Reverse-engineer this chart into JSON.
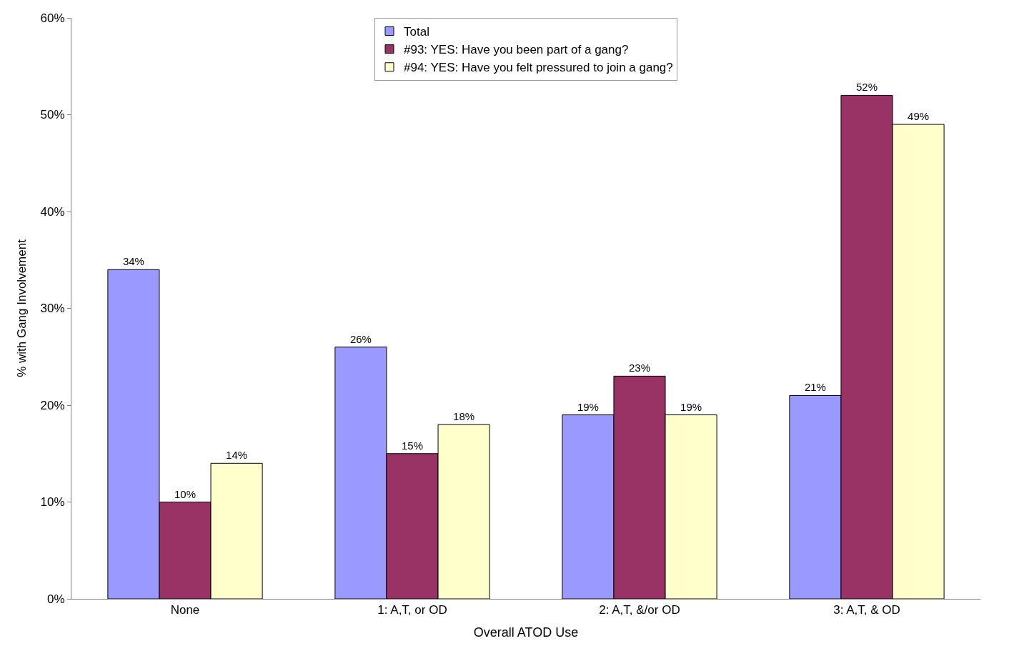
{
  "chart_data": {
    "type": "bar",
    "xlabel": "Overall ATOD Use",
    "ylabel": "% with Gang Involvement",
    "categories": [
      "None",
      "1: A,T, or OD",
      "2: A,T, &/or OD",
      "3: A,T, & OD"
    ],
    "series": [
      {
        "name": "Total",
        "color": "#9999ff",
        "values": [
          34,
          26,
          19,
          21
        ],
        "value_labels": [
          "34%",
          "26%",
          "19%",
          "21%"
        ]
      },
      {
        "name": "#93: YES: Have you been part of a gang?",
        "color": "#993366",
        "values": [
          10,
          15,
          23,
          52
        ],
        "value_labels": [
          "10%",
          "15%",
          "23%",
          "52%"
        ]
      },
      {
        "name": "#94: YES: Have you felt pressured to join a gang?",
        "color": "#ffffcc",
        "values": [
          14,
          18,
          19,
          49
        ],
        "value_labels": [
          "14%",
          "18%",
          "19%",
          "49%"
        ]
      }
    ],
    "ylim": [
      0,
      60
    ],
    "yticks": [
      {
        "value": 0,
        "label": "0%"
      },
      {
        "value": 10,
        "label": "10%"
      },
      {
        "value": 20,
        "label": "20%"
      },
      {
        "value": 30,
        "label": "30%"
      },
      {
        "value": 40,
        "label": "40%"
      },
      {
        "value": 50,
        "label": "50%"
      },
      {
        "value": 60,
        "label": "60%"
      }
    ],
    "grid": false,
    "legend": "top"
  }
}
